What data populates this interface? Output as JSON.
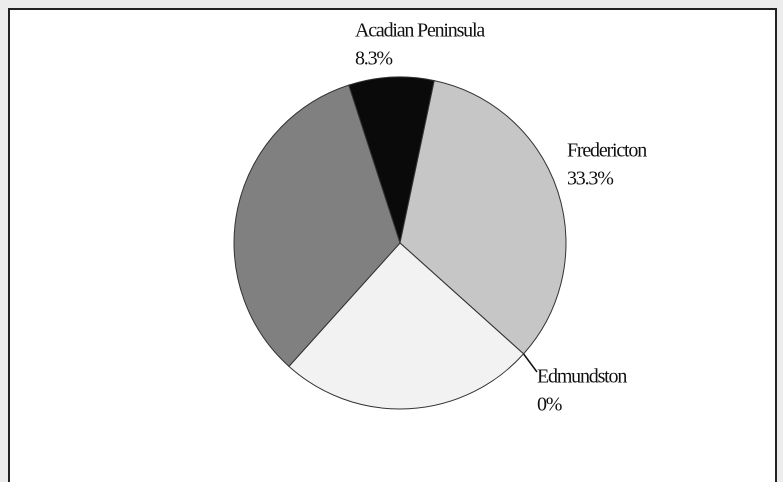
{
  "chart_data": {
    "type": "pie",
    "categories": [
      "Acadian Peninsula",
      "Fredericton",
      "Edmundston",
      null,
      null
    ],
    "values": [
      8.3,
      33.3,
      0,
      25,
      33.3
    ],
    "value_labels": [
      "8.3%",
      "33.3%",
      "0%",
      null,
      null
    ],
    "colors": [
      "#0a0a0a",
      "#c6c6c6",
      "#ffffff",
      "#f2f2f2",
      "#808080"
    ]
  }
}
